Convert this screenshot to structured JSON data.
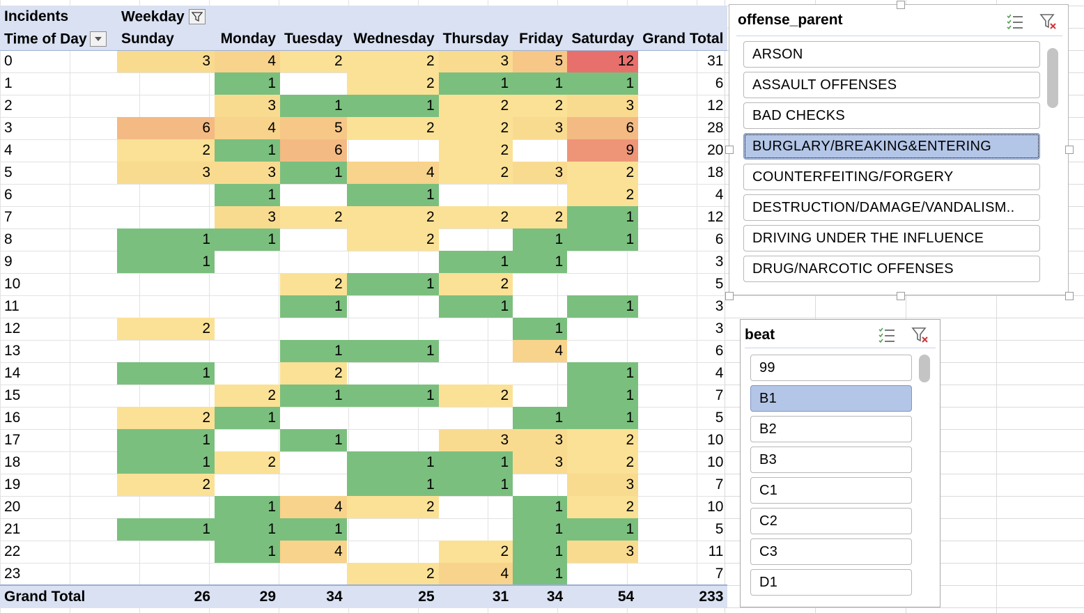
{
  "pivot": {
    "corner_label": "Incidents",
    "column_field_label": "Weekday",
    "row_field_label": "Time of Day",
    "columns": [
      "Sunday",
      "Monday",
      "Tuesday",
      "Wednesday",
      "Thursday",
      "Friday",
      "Saturday",
      "Grand Total"
    ],
    "rows": [
      {
        "label": "0",
        "values": [
          "3",
          "4",
          "2",
          "2",
          "3",
          "5",
          "12"
        ],
        "total": "31"
      },
      {
        "label": "1",
        "values": [
          "",
          "1",
          "",
          "2",
          "1",
          "1",
          "1"
        ],
        "total": "6"
      },
      {
        "label": "2",
        "values": [
          "",
          "3",
          "1",
          "1",
          "2",
          "2",
          "3"
        ],
        "total": "12"
      },
      {
        "label": "3",
        "values": [
          "6",
          "4",
          "5",
          "2",
          "2",
          "3",
          "6"
        ],
        "total": "28"
      },
      {
        "label": "4",
        "values": [
          "2",
          "1",
          "6",
          "",
          "2",
          "",
          "9"
        ],
        "total": "20"
      },
      {
        "label": "5",
        "values": [
          "3",
          "3",
          "1",
          "4",
          "2",
          "3",
          "2"
        ],
        "total": "18"
      },
      {
        "label": "6",
        "values": [
          "",
          "1",
          "",
          "1",
          "",
          "",
          "2"
        ],
        "total": "4"
      },
      {
        "label": "7",
        "values": [
          "",
          "3",
          "2",
          "2",
          "2",
          "2",
          "1"
        ],
        "total": "12"
      },
      {
        "label": "8",
        "values": [
          "1",
          "1",
          "",
          "2",
          "",
          "1",
          "1"
        ],
        "total": "6"
      },
      {
        "label": "9",
        "values": [
          "1",
          "",
          "",
          "",
          "1",
          "1",
          ""
        ],
        "total": "3"
      },
      {
        "label": "10",
        "values": [
          "",
          "",
          "2",
          "1",
          "2",
          "",
          ""
        ],
        "total": "5"
      },
      {
        "label": "11",
        "values": [
          "",
          "",
          "1",
          "",
          "1",
          "",
          "1"
        ],
        "total": "3"
      },
      {
        "label": "12",
        "values": [
          "2",
          "",
          "",
          "",
          "",
          "1",
          ""
        ],
        "total": "3"
      },
      {
        "label": "13",
        "values": [
          "",
          "",
          "1",
          "1",
          "",
          "4",
          ""
        ],
        "total": "6"
      },
      {
        "label": "14",
        "values": [
          "1",
          "",
          "2",
          "",
          "",
          "",
          "1"
        ],
        "total": "4"
      },
      {
        "label": "15",
        "values": [
          "",
          "2",
          "1",
          "1",
          "2",
          "",
          "1"
        ],
        "total": "7"
      },
      {
        "label": "16",
        "values": [
          "2",
          "1",
          "",
          "",
          "",
          "1",
          "1"
        ],
        "total": "5"
      },
      {
        "label": "17",
        "values": [
          "1",
          "",
          "1",
          "",
          "3",
          "3",
          "2"
        ],
        "total": "10"
      },
      {
        "label": "18",
        "values": [
          "1",
          "2",
          "",
          "1",
          "1",
          "3",
          "2"
        ],
        "total": "10"
      },
      {
        "label": "19",
        "values": [
          "2",
          "",
          "",
          "1",
          "1",
          "",
          "3"
        ],
        "total": "7"
      },
      {
        "label": "20",
        "values": [
          "",
          "1",
          "4",
          "2",
          "",
          "1",
          "2"
        ],
        "total": "10"
      },
      {
        "label": "21",
        "values": [
          "1",
          "1",
          "1",
          "",
          "",
          "1",
          "1"
        ],
        "total": "5"
      },
      {
        "label": "22",
        "values": [
          "",
          "1",
          "4",
          "",
          "2",
          "1",
          "3"
        ],
        "total": "11"
      },
      {
        "label": "23",
        "values": [
          "",
          "",
          "",
          "2",
          "4",
          "1",
          ""
        ],
        "total": "7"
      }
    ],
    "grand_total_label": "Grand Total",
    "grand_totals": [
      "26",
      "29",
      "34",
      "25",
      "31",
      "34",
      "54",
      "233"
    ]
  },
  "color_scale": {
    "low": "#7bbf7e",
    "mid": "#fbe89a",
    "high": "#e8706c"
  },
  "slicers": {
    "offense": {
      "title": "offense_parent",
      "items": [
        {
          "label": "ARSON",
          "selected": false
        },
        {
          "label": "ASSAULT OFFENSES",
          "selected": false
        },
        {
          "label": "BAD CHECKS",
          "selected": false
        },
        {
          "label": "BURGLARY/BREAKING&ENTERING",
          "selected": true
        },
        {
          "label": "COUNTERFEITING/FORGERY",
          "selected": false
        },
        {
          "label": "DESTRUCTION/DAMAGE/VANDALISM..",
          "selected": false
        },
        {
          "label": "DRIVING UNDER THE INFLUENCE",
          "selected": false
        },
        {
          "label": "DRUG/NARCOTIC OFFENSES",
          "selected": false
        }
      ]
    },
    "beat": {
      "title": "beat",
      "items": [
        {
          "label": "99",
          "selected": false
        },
        {
          "label": "B1",
          "selected": true
        },
        {
          "label": "B2",
          "selected": false
        },
        {
          "label": "B3",
          "selected": false
        },
        {
          "label": "C1",
          "selected": false
        },
        {
          "label": "C2",
          "selected": false
        },
        {
          "label": "C3",
          "selected": false
        },
        {
          "label": "D1",
          "selected": false
        }
      ]
    },
    "icons": [
      "multi-select-icon",
      "clear-filter-icon"
    ]
  }
}
